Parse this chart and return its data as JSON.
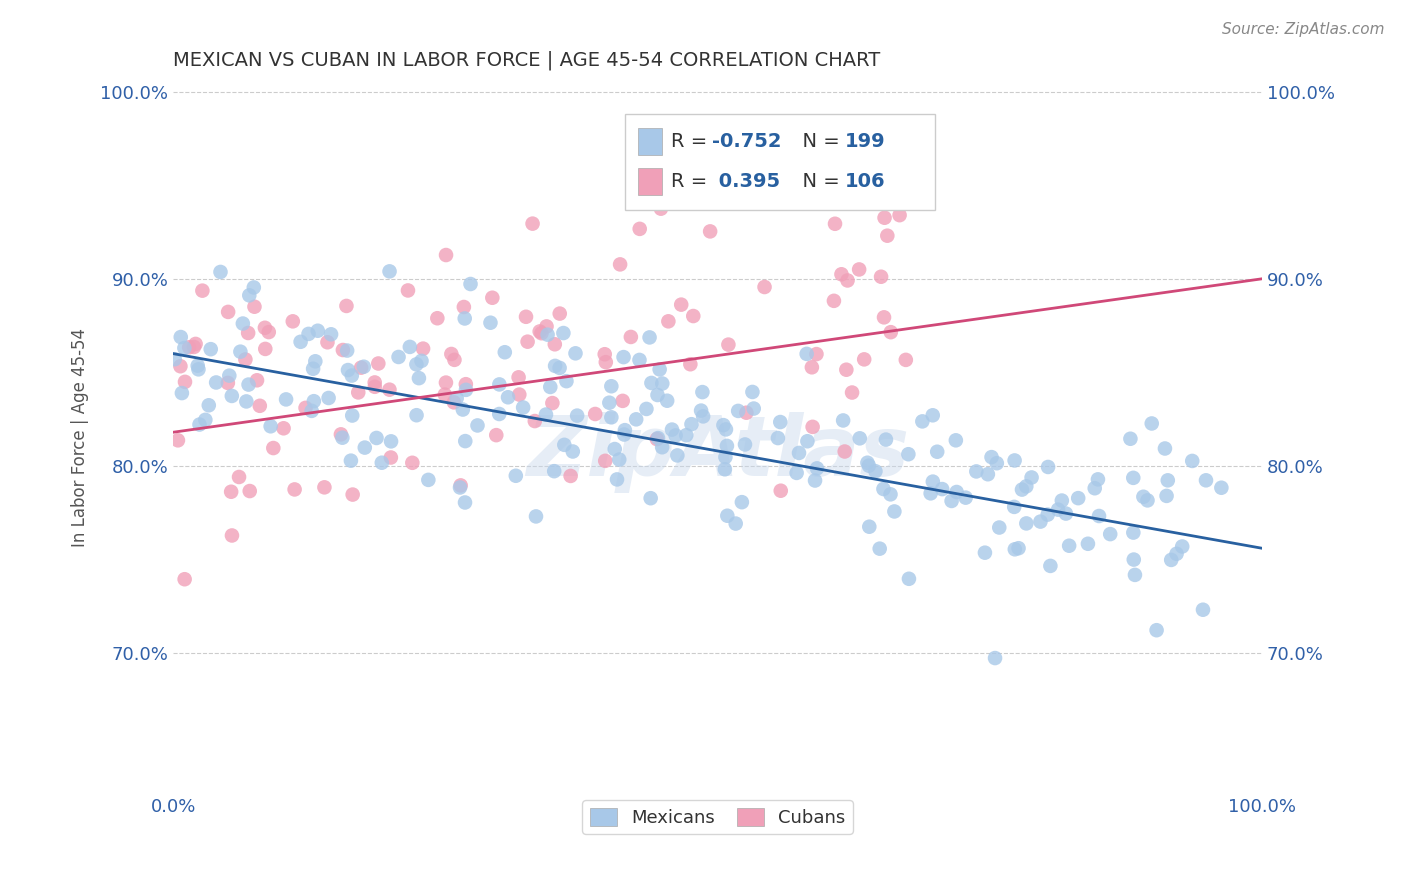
{
  "title": "MEXICAN VS CUBAN IN LABOR FORCE | AGE 45-54 CORRELATION CHART",
  "source_text": "Source: ZipAtlas.com",
  "ylabel": "In Labor Force | Age 45-54",
  "xlim": [
    0.0,
    1.0
  ],
  "ylim": [
    0.625,
    1.005
  ],
  "yticks": [
    0.7,
    0.8,
    0.9,
    1.0
  ],
  "ytick_labels": [
    "70.0%",
    "80.0%",
    "90.0%",
    "100.0%"
  ],
  "xticks": [
    0.0,
    1.0
  ],
  "xtick_labels": [
    "0.0%",
    "100.0%"
  ],
  "blue_color": "#a8c8e8",
  "pink_color": "#f0a0b8",
  "blue_line_color": "#2860a0",
  "pink_line_color": "#d04878",
  "axis_label_color": "#3060a8",
  "watermark": "ZipAtlas",
  "blue_R": -0.752,
  "pink_R": 0.395,
  "blue_N": 199,
  "pink_N": 106,
  "blue_line_y0": 0.86,
  "blue_line_y1": 0.756,
  "pink_line_y0": 0.818,
  "pink_line_y1": 0.9
}
